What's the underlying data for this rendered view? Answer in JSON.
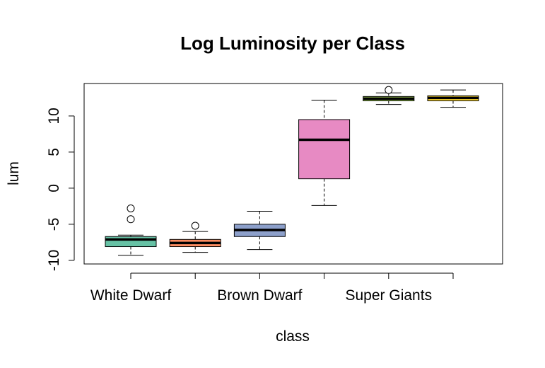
{
  "chart_data": {
    "type": "boxplot",
    "title": "Log Luminosity per Class",
    "xlabel": "class",
    "ylabel": "lum",
    "ylim": [
      -10.5,
      14.5
    ],
    "yticks": [
      -10,
      -5,
      0,
      5,
      10
    ],
    "x_tick_labels": [
      "White Dwarf",
      "",
      "Brown Dwarf",
      "",
      "Super Giants",
      ""
    ],
    "boxes": [
      {
        "color": "#66C2A5",
        "whisker_low": -9.3,
        "q1": -8.1,
        "median": -7.1,
        "q3": -6.7,
        "whisker_high": -6.5,
        "outliers": [
          -4.3,
          -2.8
        ]
      },
      {
        "color": "#FC8D62",
        "whisker_low": -8.9,
        "q1": -8.1,
        "median": -7.6,
        "q3": -7.1,
        "whisker_high": -6.0,
        "outliers": [
          -5.2
        ]
      },
      {
        "color": "#8DA0CB",
        "whisker_low": -8.5,
        "q1": -6.7,
        "median": -5.8,
        "q3": -5.0,
        "whisker_high": -3.2,
        "outliers": []
      },
      {
        "color": "#E78AC3",
        "whisker_low": -2.4,
        "q1": 1.3,
        "median": 6.7,
        "q3": 9.5,
        "whisker_high": 12.2,
        "outliers": []
      },
      {
        "color": "#A6D854",
        "whisker_low": 11.6,
        "q1": 12.1,
        "median": 12.4,
        "q3": 12.7,
        "whisker_high": 13.2,
        "outliers": [
          13.6
        ]
      },
      {
        "color": "#FFD92F",
        "whisker_low": 11.2,
        "q1": 12.1,
        "median": 12.5,
        "q3": 12.8,
        "whisker_high": 13.6,
        "outliers": []
      }
    ]
  }
}
